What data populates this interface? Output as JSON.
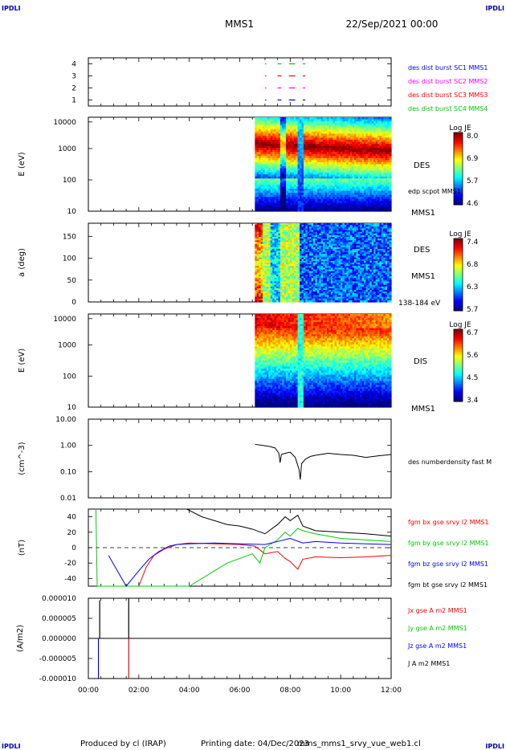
{
  "corner_logo": "IPDLI",
  "header": {
    "mission": "MMS1",
    "date": "22/Sep/2021 00:00"
  },
  "footer": {
    "produced_by": "Produced by cl (IRAP)",
    "printing_date": "Printing date: 04/Dec/2023",
    "filename": "mms_mms1_srvy_vue_web1.cl"
  },
  "time_axis": {
    "ticks": [
      "00:00",
      "02:00",
      "04:00",
      "06:00",
      "08:00",
      "10:00",
      "12:00"
    ],
    "range_hours": [
      0,
      12
    ]
  },
  "colors": {
    "blue": "#0000ff",
    "magenta": "#ff00ff",
    "red": "#ff0000",
    "green": "#00cc00",
    "black": "#000000"
  },
  "chart_data": [
    {
      "type": "scatter",
      "panel": "burst-flags",
      "ylim": [
        0.5,
        4.5
      ],
      "yticks": [
        "1",
        "2",
        "3",
        "4"
      ],
      "legend": [
        {
          "text": "des dist burst SC1 MMS1",
          "color": "#0000ff"
        },
        {
          "text": "des dist burst SC2 MMS2",
          "color": "#ff00ff"
        },
        {
          "text": "des dist burst SC3 MMS3",
          "color": "#ff0000"
        },
        {
          "text": "des dist burst SC4 MMS4",
          "color": "#00cc00"
        }
      ],
      "series": [
        {
          "color": "#0000ff",
          "y": 1,
          "x": [
            [
              7.0,
              7.05
            ],
            [
              7.5,
              7.65
            ],
            [
              7.95,
              8.2
            ],
            [
              8.5,
              8.6
            ]
          ]
        },
        {
          "color": "#ff00ff",
          "y": 2,
          "x": [
            [
              7.0,
              7.05
            ],
            [
              7.5,
              7.65
            ],
            [
              7.95,
              8.2
            ],
            [
              8.5,
              8.6
            ]
          ]
        },
        {
          "color": "#ff0000",
          "y": 3,
          "x": [
            [
              7.0,
              7.05
            ],
            [
              7.5,
              7.65
            ],
            [
              7.95,
              8.2
            ],
            [
              8.5,
              8.6
            ]
          ]
        },
        {
          "color": "#00cc00",
          "y": 4,
          "x": [
            [
              7.0,
              7.05
            ],
            [
              7.5,
              7.65
            ],
            [
              7.95,
              8.2
            ],
            [
              8.5,
              8.6
            ]
          ]
        }
      ]
    },
    {
      "type": "heatmap",
      "panel": "des-energy",
      "ylabel": "E (eV)",
      "yticks": [
        "10",
        "100",
        "1000",
        "10000"
      ],
      "label": "DES",
      "sub_label": "MMS1",
      "overlay_label": "edp scpot MMS1",
      "colorbar": {
        "title": "Log JE",
        "ticks": [
          "8.0",
          "6.9",
          "5.7",
          "4.6"
        ]
      },
      "data_start_hour": 6.6
    },
    {
      "type": "heatmap",
      "panel": "des-pitch",
      "ylabel": "a (deg)",
      "yticks": [
        "0",
        "50",
        "100",
        "150"
      ],
      "label": "DES",
      "sub_label": "MMS1",
      "energy_label": "138-184 eV",
      "colorbar": {
        "title": "Log JE",
        "ticks": [
          "7.4",
          "6.8",
          "6.3",
          "5.7"
        ]
      },
      "data_start_hour": 6.6
    },
    {
      "type": "heatmap",
      "panel": "dis-energy",
      "ylabel": "E (eV)",
      "yticks": [
        "10",
        "100",
        "1000",
        "10000"
      ],
      "label": "DIS",
      "sub_label": "MMS1",
      "colorbar": {
        "title": "Log JE",
        "ticks": [
          "6.7",
          "5.6",
          "4.5",
          "3.4"
        ]
      },
      "data_start_hour": 6.6
    },
    {
      "type": "line",
      "panel": "density",
      "ylabel": "(cm^-3)",
      "yticks": [
        "0.01",
        "0.10",
        "1.00",
        "10.00"
      ],
      "ylim": [
        0.01,
        10
      ],
      "scale": "log",
      "legend": [
        {
          "text": "des numberdensity fast M",
          "color": "#000000"
        }
      ],
      "series": [
        {
          "color": "#000000",
          "x": [
            6.6,
            6.9,
            7.2,
            7.4,
            7.55,
            7.6,
            7.65,
            7.8,
            8.0,
            8.2,
            8.35,
            8.4,
            8.45,
            8.6,
            8.8,
            9.0,
            9.5,
            10.0,
            10.5,
            11.0,
            11.5,
            12.0
          ],
          "y": [
            1.1,
            1.0,
            0.9,
            0.8,
            0.5,
            0.22,
            0.45,
            0.5,
            0.55,
            0.35,
            0.12,
            0.05,
            0.2,
            0.3,
            0.38,
            0.42,
            0.5,
            0.45,
            0.42,
            0.35,
            0.4,
            0.45
          ]
        }
      ]
    },
    {
      "type": "line",
      "panel": "magnetic-field",
      "ylabel": "(nT)",
      "yticks": [
        "-40",
        "-20",
        "0",
        "20",
        "40"
      ],
      "ylim": [
        -50,
        50
      ],
      "legend": [
        {
          "text": "fgm bx gse srvy l2 MMS1",
          "color": "#ff0000"
        },
        {
          "text": "fgm by gse srvy l2 MMS1",
          "color": "#00cc00"
        },
        {
          "text": "fgm bz gse srvy l2 MMS1",
          "color": "#0000ff"
        },
        {
          "text": "fgm bt gse srvy l2 MMS1",
          "color": "#000000"
        }
      ],
      "series": [
        {
          "color": "#ff0000",
          "x": [
            2.0,
            2.3,
            2.6,
            3.0,
            3.5,
            4.0,
            5.0,
            6.0,
            6.6,
            7.0,
            7.5,
            7.8,
            8.0,
            8.3,
            8.5,
            9.0,
            10.0,
            11.0,
            12.0
          ],
          "y": [
            -50,
            -25,
            -10,
            -2,
            4,
            6,
            5,
            4,
            2,
            -8,
            -5,
            -14,
            -18,
            -28,
            -15,
            -12,
            -13,
            -12,
            -10
          ]
        },
        {
          "color": "#00cc00",
          "x": [
            0.3,
            0.35,
            4.0,
            4.5,
            5.0,
            5.5,
            6.0,
            6.5,
            6.8,
            7.0,
            7.5,
            7.8,
            8.0,
            8.3,
            8.5,
            9.0,
            10.0,
            11.0,
            12.0
          ],
          "y": [
            50,
            -50,
            -50,
            -40,
            -30,
            -20,
            -14,
            -8,
            -20,
            0,
            10,
            20,
            15,
            25,
            22,
            18,
            12,
            10,
            8
          ]
        },
        {
          "color": "#0000ff",
          "x": [
            0.8,
            1.5,
            2.0,
            2.4,
            2.8,
            3.2,
            3.5,
            4.0,
            5.0,
            6.0,
            7.0,
            7.5,
            8.0,
            8.5,
            9.0,
            10.0,
            11.0,
            12.0
          ],
          "y": [
            -10,
            -50,
            -30,
            -15,
            -5,
            2,
            4,
            5,
            6,
            5,
            4,
            8,
            12,
            6,
            8,
            6,
            5,
            4
          ]
        },
        {
          "color": "#000000",
          "x": [
            3.9,
            4.5,
            5.0,
            5.5,
            6.0,
            6.5,
            7.0,
            7.5,
            7.8,
            8.0,
            8.3,
            8.5,
            9.0,
            10.0,
            11.0,
            12.0
          ],
          "y": [
            50,
            40,
            35,
            30,
            28,
            24,
            18,
            30,
            40,
            35,
            42,
            28,
            22,
            20,
            18,
            15
          ]
        }
      ]
    },
    {
      "type": "line",
      "panel": "current-density",
      "ylabel": "(A/m2)",
      "yticks": [
        "-0.000010",
        "-0.000005",
        "0.000000",
        "0.000005",
        "0.000010"
      ],
      "ylim": [
        -1e-05,
        1e-05
      ],
      "legend": [
        {
          "text": "Jx gse A m2 MMS1",
          "color": "#ff0000"
        },
        {
          "text": "Jy gse A m2 MMS1",
          "color": "#00cc00"
        },
        {
          "text": "Jz gse A m2 MMS1",
          "color": "#0000ff"
        },
        {
          "text": "J A m2 MMS1",
          "color": "#000000"
        }
      ],
      "spikes": [
        {
          "x": 0.4,
          "color": "#0000ff",
          "y": -1e-05
        },
        {
          "x": 0.45,
          "color": "#000000",
          "y": 9.5e-06
        },
        {
          "x": 1.6,
          "color": "#ff0000",
          "y": -1e-05
        },
        {
          "x": 1.6,
          "color": "#000000",
          "y": 1e-05
        }
      ]
    }
  ]
}
